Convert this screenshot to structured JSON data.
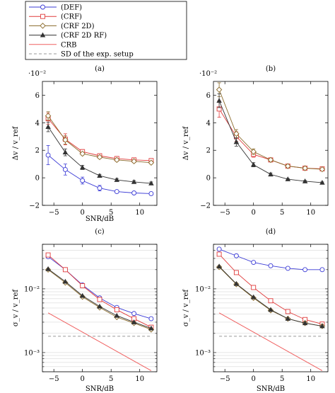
{
  "legend": {
    "items": [
      {
        "label": "(DEF)",
        "color": "#3b3bd6",
        "marker": "circle"
      },
      {
        "label": "(CRF)",
        "color": "#e03c3c",
        "marker": "square"
      },
      {
        "label": "(CRF 2D)",
        "color": "#8a6a2a",
        "marker": "diamond"
      },
      {
        "label": "(CRF 2D RF)",
        "color": "#333333",
        "marker": "triangle"
      },
      {
        "label": "CRB",
        "color": "#f06060",
        "marker": "none"
      },
      {
        "label": "SD of the exp. setup",
        "color": "#999999",
        "marker": "dashed"
      }
    ]
  },
  "chart_data": [
    {
      "type": "line",
      "panel_label": "(a)",
      "exponent_label": "·10⁻²",
      "xlabel": "SNR/dB",
      "ylabel": "Δv / v_ref",
      "xlim": [
        -7,
        13
      ],
      "ylim": [
        -2,
        7
      ],
      "xticks": [
        -5,
        0,
        5,
        10
      ],
      "yticks": [
        -2,
        0,
        2,
        4,
        6
      ],
      "grid": false,
      "x": [
        -6,
        -3,
        0,
        3,
        6,
        9,
        12
      ],
      "series": [
        {
          "name": "(DEF)",
          "values": [
            1.65,
            0.6,
            -0.2,
            -0.75,
            -1.0,
            -1.1,
            -1.15
          ],
          "error": [
            0.7,
            0.4,
            0.25,
            0.2,
            0.1,
            0.1,
            0.1
          ]
        },
        {
          "name": "(CRF)",
          "values": [
            4.3,
            2.8,
            1.9,
            1.6,
            1.4,
            1.3,
            1.25
          ],
          "error": [
            0.4,
            0.4,
            0.15,
            0.1,
            0.1,
            0.1,
            0.1
          ]
        },
        {
          "name": "(CRF 2D)",
          "values": [
            4.5,
            2.75,
            1.75,
            1.5,
            1.3,
            1.2,
            1.1
          ],
          "error": [
            0.3,
            0.3,
            0.1,
            0.1,
            0.1,
            0.1,
            0.1
          ]
        },
        {
          "name": "(CRF 2D RF)",
          "values": [
            3.7,
            1.85,
            0.75,
            0.15,
            -0.15,
            -0.3,
            -0.4
          ],
          "error": [
            0.35,
            0.25,
            0.15,
            0.1,
            0.1,
            0.1,
            0.1
          ]
        }
      ]
    },
    {
      "type": "line",
      "panel_label": "(b)",
      "exponent_label": "·10⁻²",
      "xlabel": "",
      "ylabel": "Δv / v_ref",
      "xlim": [
        -7,
        13
      ],
      "ylim": [
        -2,
        7
      ],
      "xticks": [
        -5,
        0,
        5,
        10
      ],
      "yticks": [
        -2,
        0,
        2,
        4,
        6
      ],
      "grid": false,
      "x": [
        -6,
        -3,
        0,
        3,
        6,
        9,
        12
      ],
      "series": [
        {
          "name": "(DEF)",
          "values": [
            null,
            null,
            null,
            null,
            null,
            null,
            null
          ],
          "error": []
        },
        {
          "name": "(CRF)",
          "values": [
            5.0,
            3.0,
            1.7,
            1.3,
            0.85,
            0.7,
            0.65
          ],
          "error": [
            0.6,
            0.35,
            0.2,
            0.1,
            0.1,
            0.05,
            0.05
          ]
        },
        {
          "name": "(CRF 2D)",
          "values": [
            6.4,
            3.2,
            1.9,
            1.3,
            0.85,
            0.7,
            0.62
          ],
          "error": [
            0.5,
            0.3,
            0.2,
            0.1,
            0.1,
            0.05,
            0.05
          ]
        },
        {
          "name": "(CRF 2D RF)",
          "values": [
            5.6,
            2.6,
            0.95,
            0.25,
            -0.1,
            -0.25,
            -0.35
          ],
          "error": [
            0.5,
            0.3,
            0.15,
            0.1,
            0.05,
            0.05,
            0.05
          ]
        }
      ]
    },
    {
      "type": "line",
      "panel_label": "(c)",
      "xlabel": "SNR/dB",
      "ylabel": "σ_v / v_ref",
      "log_y": true,
      "xlim": [
        -7,
        13
      ],
      "ylim": [
        0.0005,
        0.05
      ],
      "xticks": [
        -5,
        0,
        5,
        10
      ],
      "yticks_labeled": [
        0.001,
        0.01
      ],
      "ytick_labels": [
        "10⁻³",
        "10⁻²"
      ],
      "grid": "y-minor",
      "x": [
        -6,
        -3,
        0,
        3,
        6,
        9,
        12
      ],
      "series": [
        {
          "name": "(DEF)",
          "values": [
            0.032,
            0.02,
            0.0115,
            0.0072,
            0.0051,
            0.0041,
            0.0034
          ]
        },
        {
          "name": "(CRF)",
          "values": [
            0.034,
            0.02,
            0.0112,
            0.0068,
            0.0047,
            0.0034,
            0.0025
          ]
        },
        {
          "name": "(CRF 2D)",
          "values": [
            0.02,
            0.0125,
            0.0075,
            0.0051,
            0.0036,
            0.0029,
            0.0023
          ]
        },
        {
          "name": "(CRF 2D RF)",
          "values": [
            0.0205,
            0.013,
            0.0078,
            0.0053,
            0.0038,
            0.003,
            0.0024
          ]
        },
        {
          "name": "CRB",
          "x": [
            -6,
            12
          ],
          "values": [
            0.0042,
            0.00052
          ]
        },
        {
          "name": "SD of the exp. setup",
          "x": [
            -6,
            12
          ],
          "values": [
            0.0018,
            0.0018
          ]
        }
      ]
    },
    {
      "type": "line",
      "panel_label": "(d)",
      "xlabel": "SNR/dB",
      "ylabel": "σ_v / v_ref",
      "log_y": true,
      "xlim": [
        -7,
        13
      ],
      "ylim": [
        0.0005,
        0.05
      ],
      "xticks": [
        -5,
        0,
        5,
        10
      ],
      "yticks_labeled": [
        0.001,
        0.01
      ],
      "ytick_labels": [
        "10⁻³",
        "10⁻²"
      ],
      "grid": "y-minor",
      "x": [
        -6,
        -3,
        0,
        3,
        6,
        9,
        12
      ],
      "series": [
        {
          "name": "(DEF)",
          "values": [
            0.042,
            0.033,
            0.026,
            0.023,
            0.021,
            0.02,
            0.02
          ]
        },
        {
          "name": "(CRF)",
          "values": [
            0.035,
            0.018,
            0.0105,
            0.0065,
            0.0044,
            0.0033,
            0.0028
          ]
        },
        {
          "name": "(CRF 2D)",
          "values": [
            0.022,
            0.0118,
            0.0072,
            0.0046,
            0.0034,
            0.0029,
            0.0026
          ]
        },
        {
          "name": "(CRF 2D RF)",
          "values": [
            0.0225,
            0.012,
            0.0074,
            0.0047,
            0.0034,
            0.0029,
            0.0026
          ]
        },
        {
          "name": "CRB",
          "x": [
            -6,
            12
          ],
          "values": [
            0.0042,
            0.00052
          ]
        },
        {
          "name": "SD of the exp. setup",
          "x": [
            -6,
            12
          ],
          "values": [
            0.0018,
            0.0018
          ]
        }
      ]
    }
  ]
}
